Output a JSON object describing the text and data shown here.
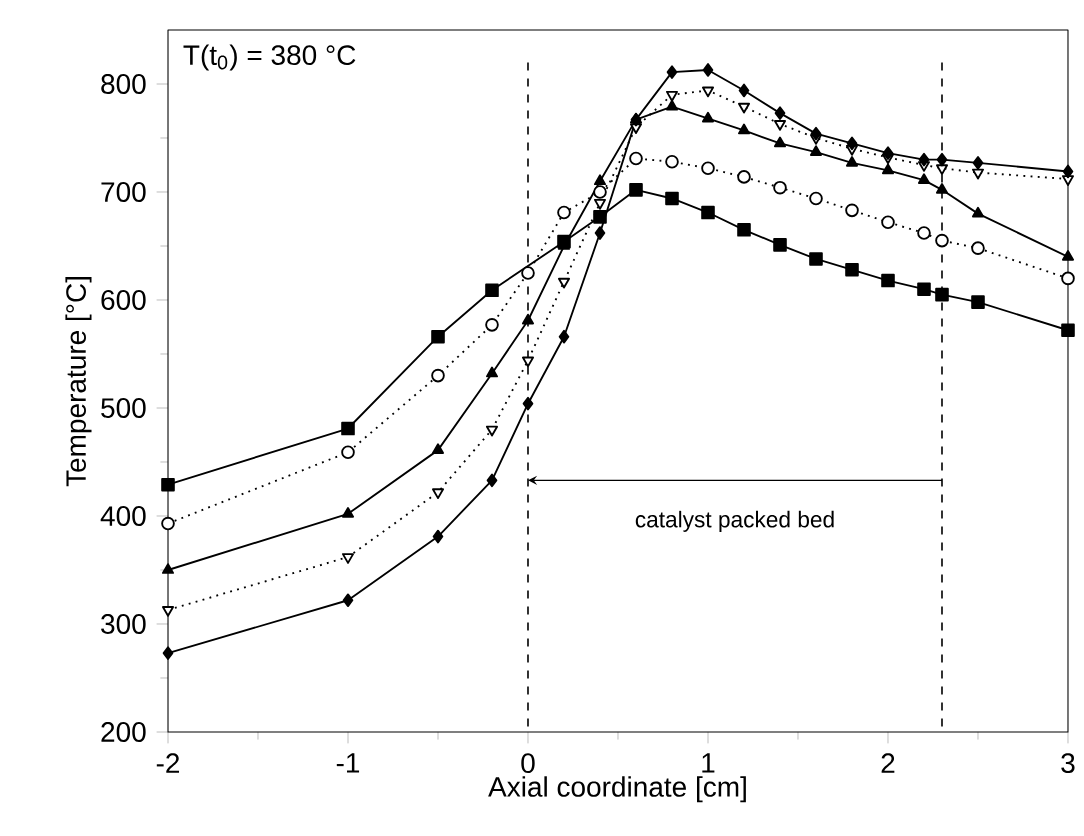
{
  "chart_data": {
    "type": "line",
    "xlabel": "Axial coordinate [cm]",
    "ylabel": "Temperature [°C]",
    "annotations": [
      "T(t$_{0}$) = 380 °C",
      "catalyst packed bed"
    ],
    "x": [
      -2,
      -1,
      -0.5,
      -0.2,
      0,
      0.2,
      0.4,
      0.6,
      0.8,
      1.0,
      1.2,
      1.4,
      1.6,
      1.8,
      2.0,
      2.2,
      2.3,
      2.5,
      3.0
    ],
    "series": [
      {
        "color": "#000000",
        "marker": "square",
        "line_style": "solid",
        "values": [
          429,
          481,
          566,
          609,
          null,
          654,
          677,
          702,
          694,
          681,
          665,
          651,
          638,
          628,
          618,
          610,
          605,
          598,
          572
        ]
      },
      {
        "color": "#000000",
        "marker": "circle-open",
        "line_style": "dotted",
        "values": [
          393,
          459,
          530,
          577,
          625,
          681,
          700,
          731,
          728,
          722,
          714,
          704,
          694,
          683,
          672,
          662,
          655,
          648,
          620
        ]
      },
      {
        "color": "#000000",
        "marker": "triangle",
        "line_style": "solid",
        "values": [
          350,
          402,
          461,
          532,
          581,
          650,
          710,
          767,
          779,
          768,
          757,
          745,
          737,
          727,
          720,
          711,
          702,
          680,
          640
        ]
      },
      {
        "color": "#000000",
        "marker": "triangle-down-open",
        "line_style": "dotted",
        "values": [
          313,
          362,
          422,
          480,
          544,
          617,
          690,
          760,
          790,
          794,
          779,
          763,
          750,
          740,
          732,
          725,
          722,
          718,
          712
        ]
      },
      {
        "color": "#000000",
        "marker": "diamond",
        "line_style": "solid",
        "values": [
          273,
          322,
          381,
          433,
          504,
          566,
          662,
          767,
          811,
          813,
          794,
          773,
          754,
          745,
          736,
          730,
          730,
          727,
          719
        ]
      }
    ],
    "ref_lines": [
      {
        "axis": "x",
        "value": 0,
        "line_style": "dashed"
      },
      {
        "axis": "x",
        "value": 2.3,
        "line_style": "dashed"
      }
    ],
    "xlim": [
      -2,
      3
    ],
    "ylim": [
      200,
      850
    ],
    "xticks": [
      -2,
      -1,
      0,
      1,
      2,
      3
    ],
    "yticks": [
      200,
      300,
      400,
      500,
      600,
      700,
      800
    ],
    "grid": false
  }
}
